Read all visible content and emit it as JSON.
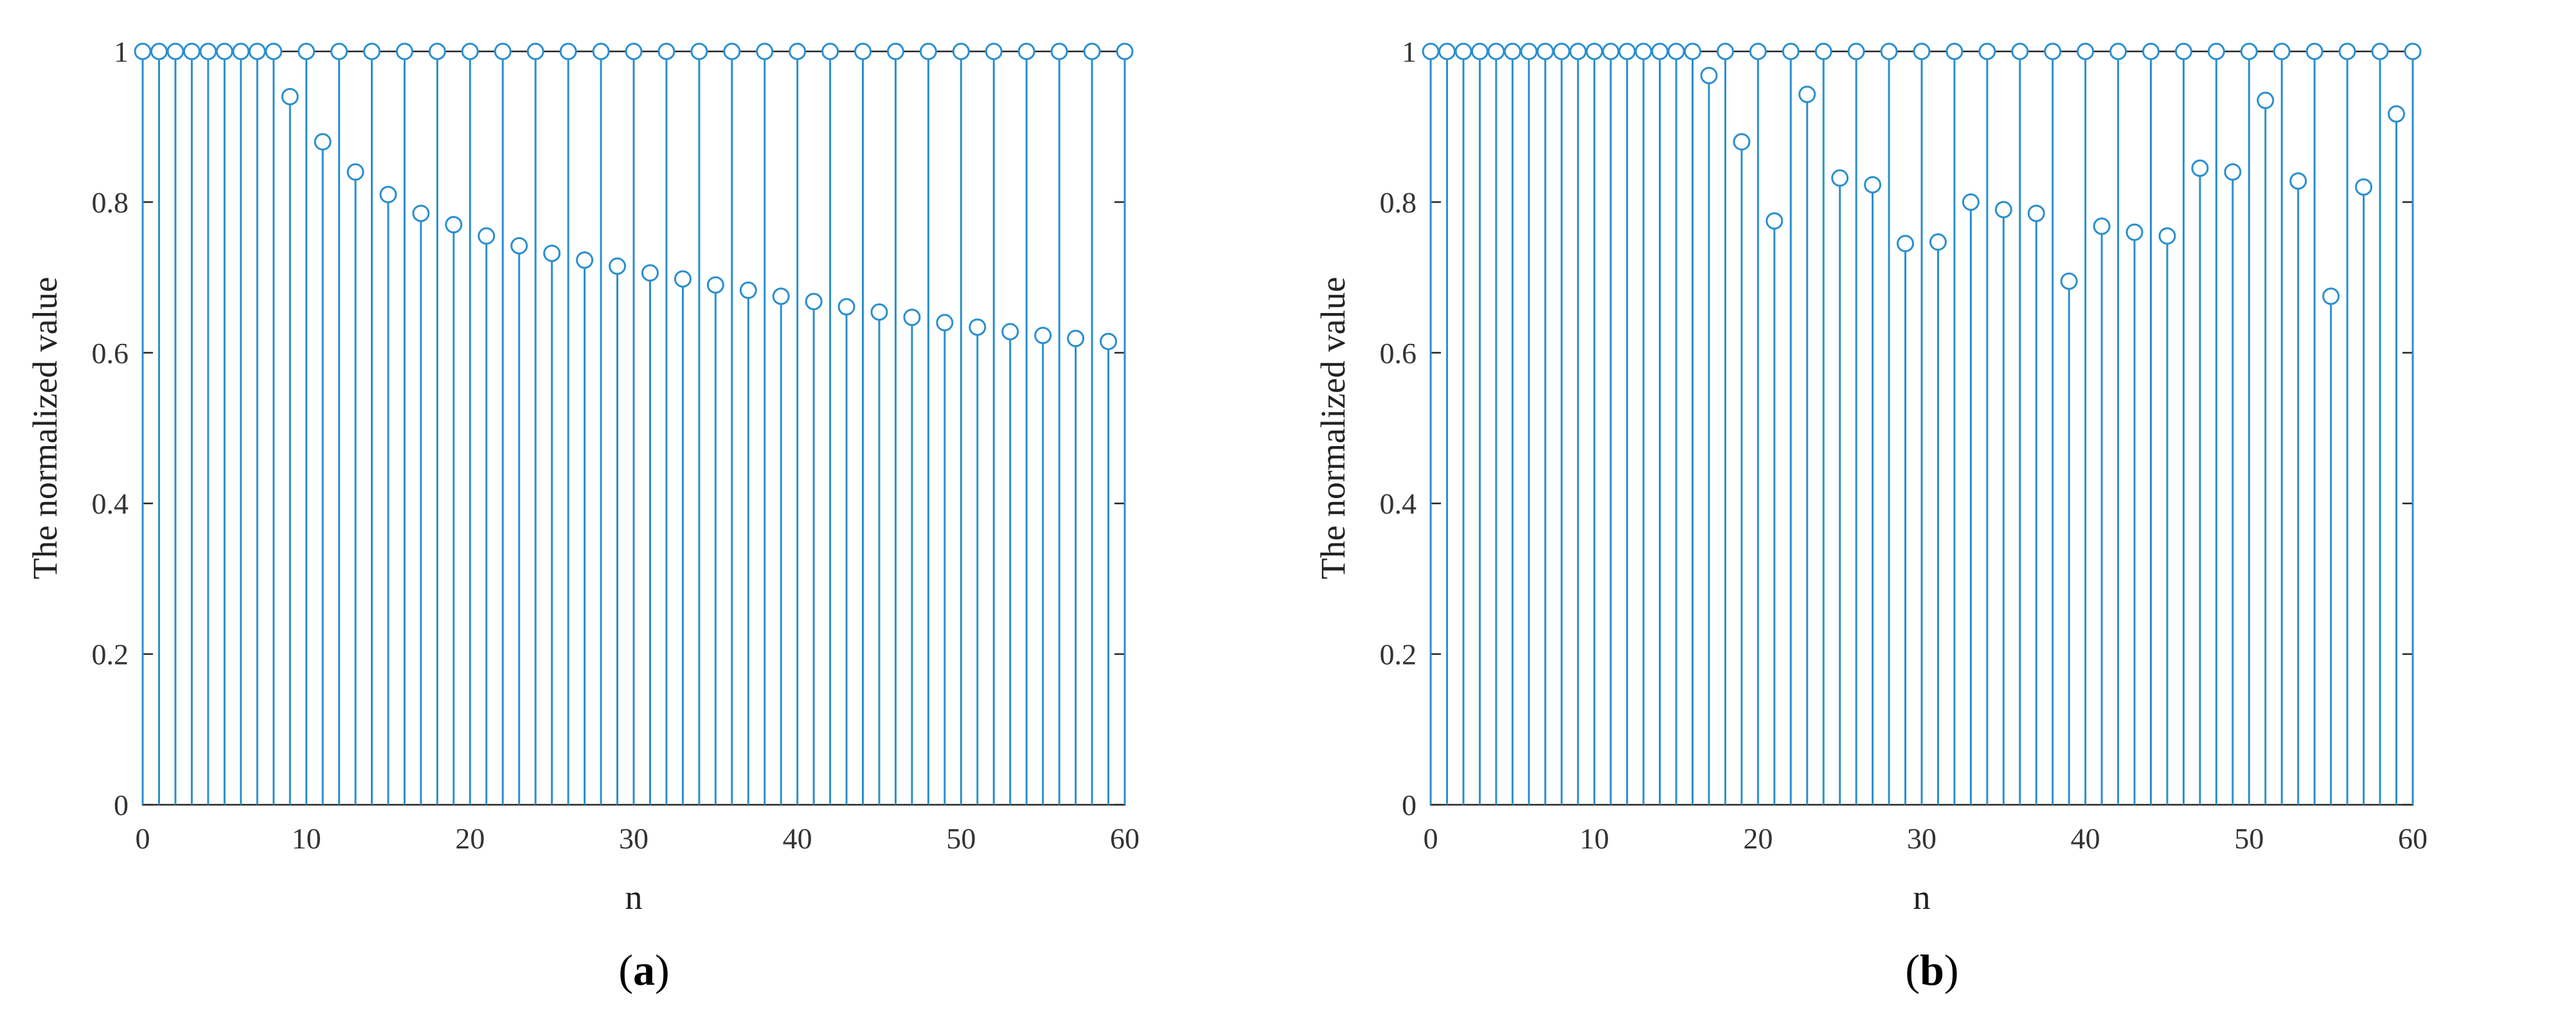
{
  "chart_data": [
    {
      "id": "a",
      "type": "stem",
      "caption_letter": "a",
      "xlabel": "n",
      "ylabel": "The normalized value",
      "xlim": [
        0,
        60
      ],
      "ylim": [
        0,
        1
      ],
      "xticks": [
        0,
        10,
        20,
        30,
        40,
        50,
        60
      ],
      "yticks": [
        0,
        0.2,
        0.4,
        0.6,
        0.8,
        1
      ],
      "ytick_labels": [
        "0",
        "0.2",
        "0.4",
        "0.6",
        "0.8",
        "1"
      ],
      "grid": false,
      "color": "#2a8fce",
      "x": [
        0,
        1,
        2,
        3,
        4,
        5,
        6,
        7,
        8,
        9,
        10,
        11,
        12,
        13,
        14,
        15,
        16,
        17,
        18,
        19,
        20,
        21,
        22,
        23,
        24,
        25,
        26,
        27,
        28,
        29,
        30,
        31,
        32,
        33,
        34,
        35,
        36,
        37,
        38,
        39,
        40,
        41,
        42,
        43,
        44,
        45,
        46,
        47,
        48,
        49,
        50,
        51,
        52,
        53,
        54,
        55,
        56,
        57,
        58,
        59,
        60
      ],
      "y": [
        1,
        1,
        1,
        1,
        1,
        1,
        1,
        1,
        1,
        0.94,
        1,
        0.88,
        1,
        0.84,
        1,
        0.81,
        1,
        0.785,
        1,
        0.77,
        1,
        0.755,
        1,
        0.742,
        1,
        0.732,
        1,
        0.723,
        1,
        0.715,
        1,
        0.706,
        1,
        0.698,
        1,
        0.69,
        1,
        0.683,
        1,
        0.675,
        1,
        0.668,
        1,
        0.661,
        1,
        0.654,
        1,
        0.647,
        1,
        0.64,
        1,
        0.634,
        1,
        0.628,
        1,
        0.623,
        1,
        0.619,
        1,
        0.615,
        1
      ]
    },
    {
      "id": "b",
      "type": "stem",
      "caption_letter": "b",
      "xlabel": "n",
      "ylabel": "The normalized value",
      "xlim": [
        0,
        60
      ],
      "ylim": [
        0,
        1
      ],
      "xticks": [
        0,
        10,
        20,
        30,
        40,
        50,
        60
      ],
      "yticks": [
        0,
        0.2,
        0.4,
        0.6,
        0.8,
        1
      ],
      "ytick_labels": [
        "0",
        "0.2",
        "0.4",
        "0.6",
        "0.8",
        "1"
      ],
      "grid": false,
      "color": "#2a8fce",
      "x": [
        0,
        1,
        2,
        3,
        4,
        5,
        6,
        7,
        8,
        9,
        10,
        11,
        12,
        13,
        14,
        15,
        16,
        17,
        18,
        19,
        20,
        21,
        22,
        23,
        24,
        25,
        26,
        27,
        28,
        29,
        30,
        31,
        32,
        33,
        34,
        35,
        36,
        37,
        38,
        39,
        40,
        41,
        42,
        43,
        44,
        45,
        46,
        47,
        48,
        49,
        50,
        51,
        52,
        53,
        54,
        55,
        56,
        57,
        58,
        59,
        60
      ],
      "y": [
        1,
        1,
        1,
        1,
        1,
        1,
        1,
        1,
        1,
        1,
        1,
        1,
        1,
        1,
        1,
        1,
        1,
        0.968,
        1,
        0.88,
        1,
        0.775,
        1,
        0.943,
        1,
        0.832,
        1,
        0.823,
        1,
        0.745,
        1,
        0.747,
        1,
        0.8,
        1,
        0.79,
        1,
        0.785,
        1,
        0.695,
        1,
        0.768,
        1,
        0.76,
        1,
        0.755,
        1,
        0.845,
        1,
        0.84,
        1,
        0.935,
        1,
        0.828,
        1,
        0.675,
        1,
        0.82,
        1,
        0.917,
        1
      ]
    }
  ]
}
